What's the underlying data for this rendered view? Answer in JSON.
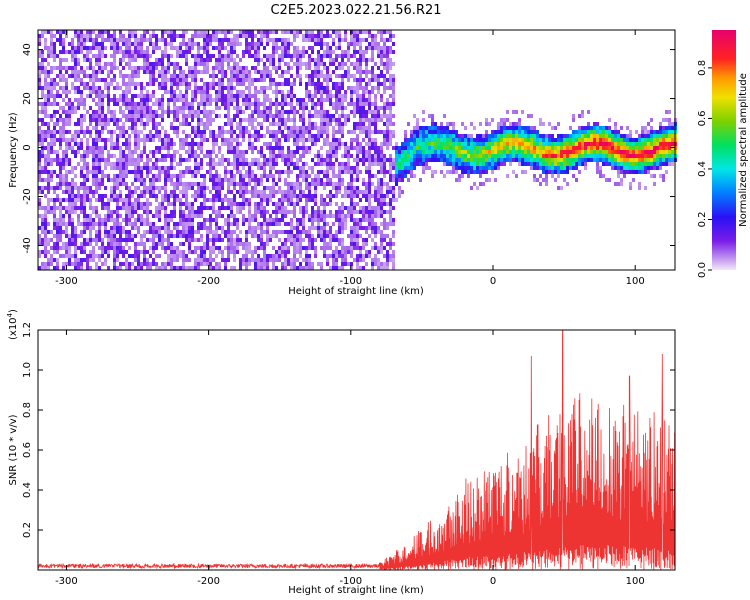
{
  "figure_title": "C2E5.2023.022.21.56.R21",
  "chart_data": [
    {
      "type": "heatmap",
      "title": "",
      "xlabel": "Height of straight line (km)",
      "ylabel": "Frequency (Hz)",
      "xlim": [
        -320,
        128
      ],
      "ylim": [
        -50,
        48
      ],
      "xticks": [
        -300,
        -200,
        -100,
        0,
        100
      ],
      "xtick_labels": [
        "-300",
        "-200",
        "-100",
        "0",
        "100"
      ],
      "yticks": [
        -40,
        -20,
        0,
        20,
        40
      ],
      "ytick_labels": [
        "-40",
        "-20",
        "0",
        "20",
        "40"
      ],
      "noise_region_end_x": -70,
      "signal_band": {
        "x_start": -75,
        "x_end": 128,
        "center_freq_hz": 0,
        "half_width_hz": 8
      },
      "colorbar": {
        "label": "Normalized spectral amplitude",
        "range": [
          0.0,
          0.95
        ],
        "ticks": [
          0.0,
          0.2,
          0.4,
          0.6,
          0.8
        ],
        "tick_labels": [
          "0.0",
          "0.2",
          "0.4",
          "0.6",
          "0.8"
        ]
      }
    },
    {
      "type": "line",
      "title": "",
      "xlabel": "Height of straight line (km)",
      "ylabel": "SNR (10 * v/v)",
      "multiplier_label": "(x10",
      "multiplier_exponent": "4",
      "multiplier_close": ")",
      "xlim": [
        -320,
        128
      ],
      "ylim": [
        0,
        1.2
      ],
      "xticks": [
        -300,
        -200,
        -100,
        0,
        100
      ],
      "xtick_labels": [
        "-300",
        "-200",
        "-100",
        "0",
        "100"
      ],
      "yticks": [
        0.2,
        0.4,
        0.6,
        0.8,
        1.0,
        1.2
      ],
      "ytick_labels": [
        "0.2",
        "0.4",
        "0.6",
        "0.8",
        "1.0",
        "1.2"
      ],
      "series_color": "#ee3333",
      "trend": [
        {
          "x": -320,
          "y": 0.02
        },
        {
          "x": -80,
          "y": 0.02
        },
        {
          "x": -60,
          "y": 0.08
        },
        {
          "x": -40,
          "y": 0.16
        },
        {
          "x": -20,
          "y": 0.26
        },
        {
          "x": 0,
          "y": 0.3
        },
        {
          "x": 20,
          "y": 0.36
        },
        {
          "x": 40,
          "y": 0.44
        },
        {
          "x": 60,
          "y": 0.5
        },
        {
          "x": 80,
          "y": 0.5
        },
        {
          "x": 100,
          "y": 0.46
        },
        {
          "x": 128,
          "y": 0.42
        }
      ],
      "peak_points": [
        {
          "x": 49,
          "y": 1.2
        },
        {
          "x": 27,
          "y": 1.07
        },
        {
          "x": 119,
          "y": 1.08
        },
        {
          "x": 96,
          "y": 0.97
        }
      ]
    }
  ]
}
